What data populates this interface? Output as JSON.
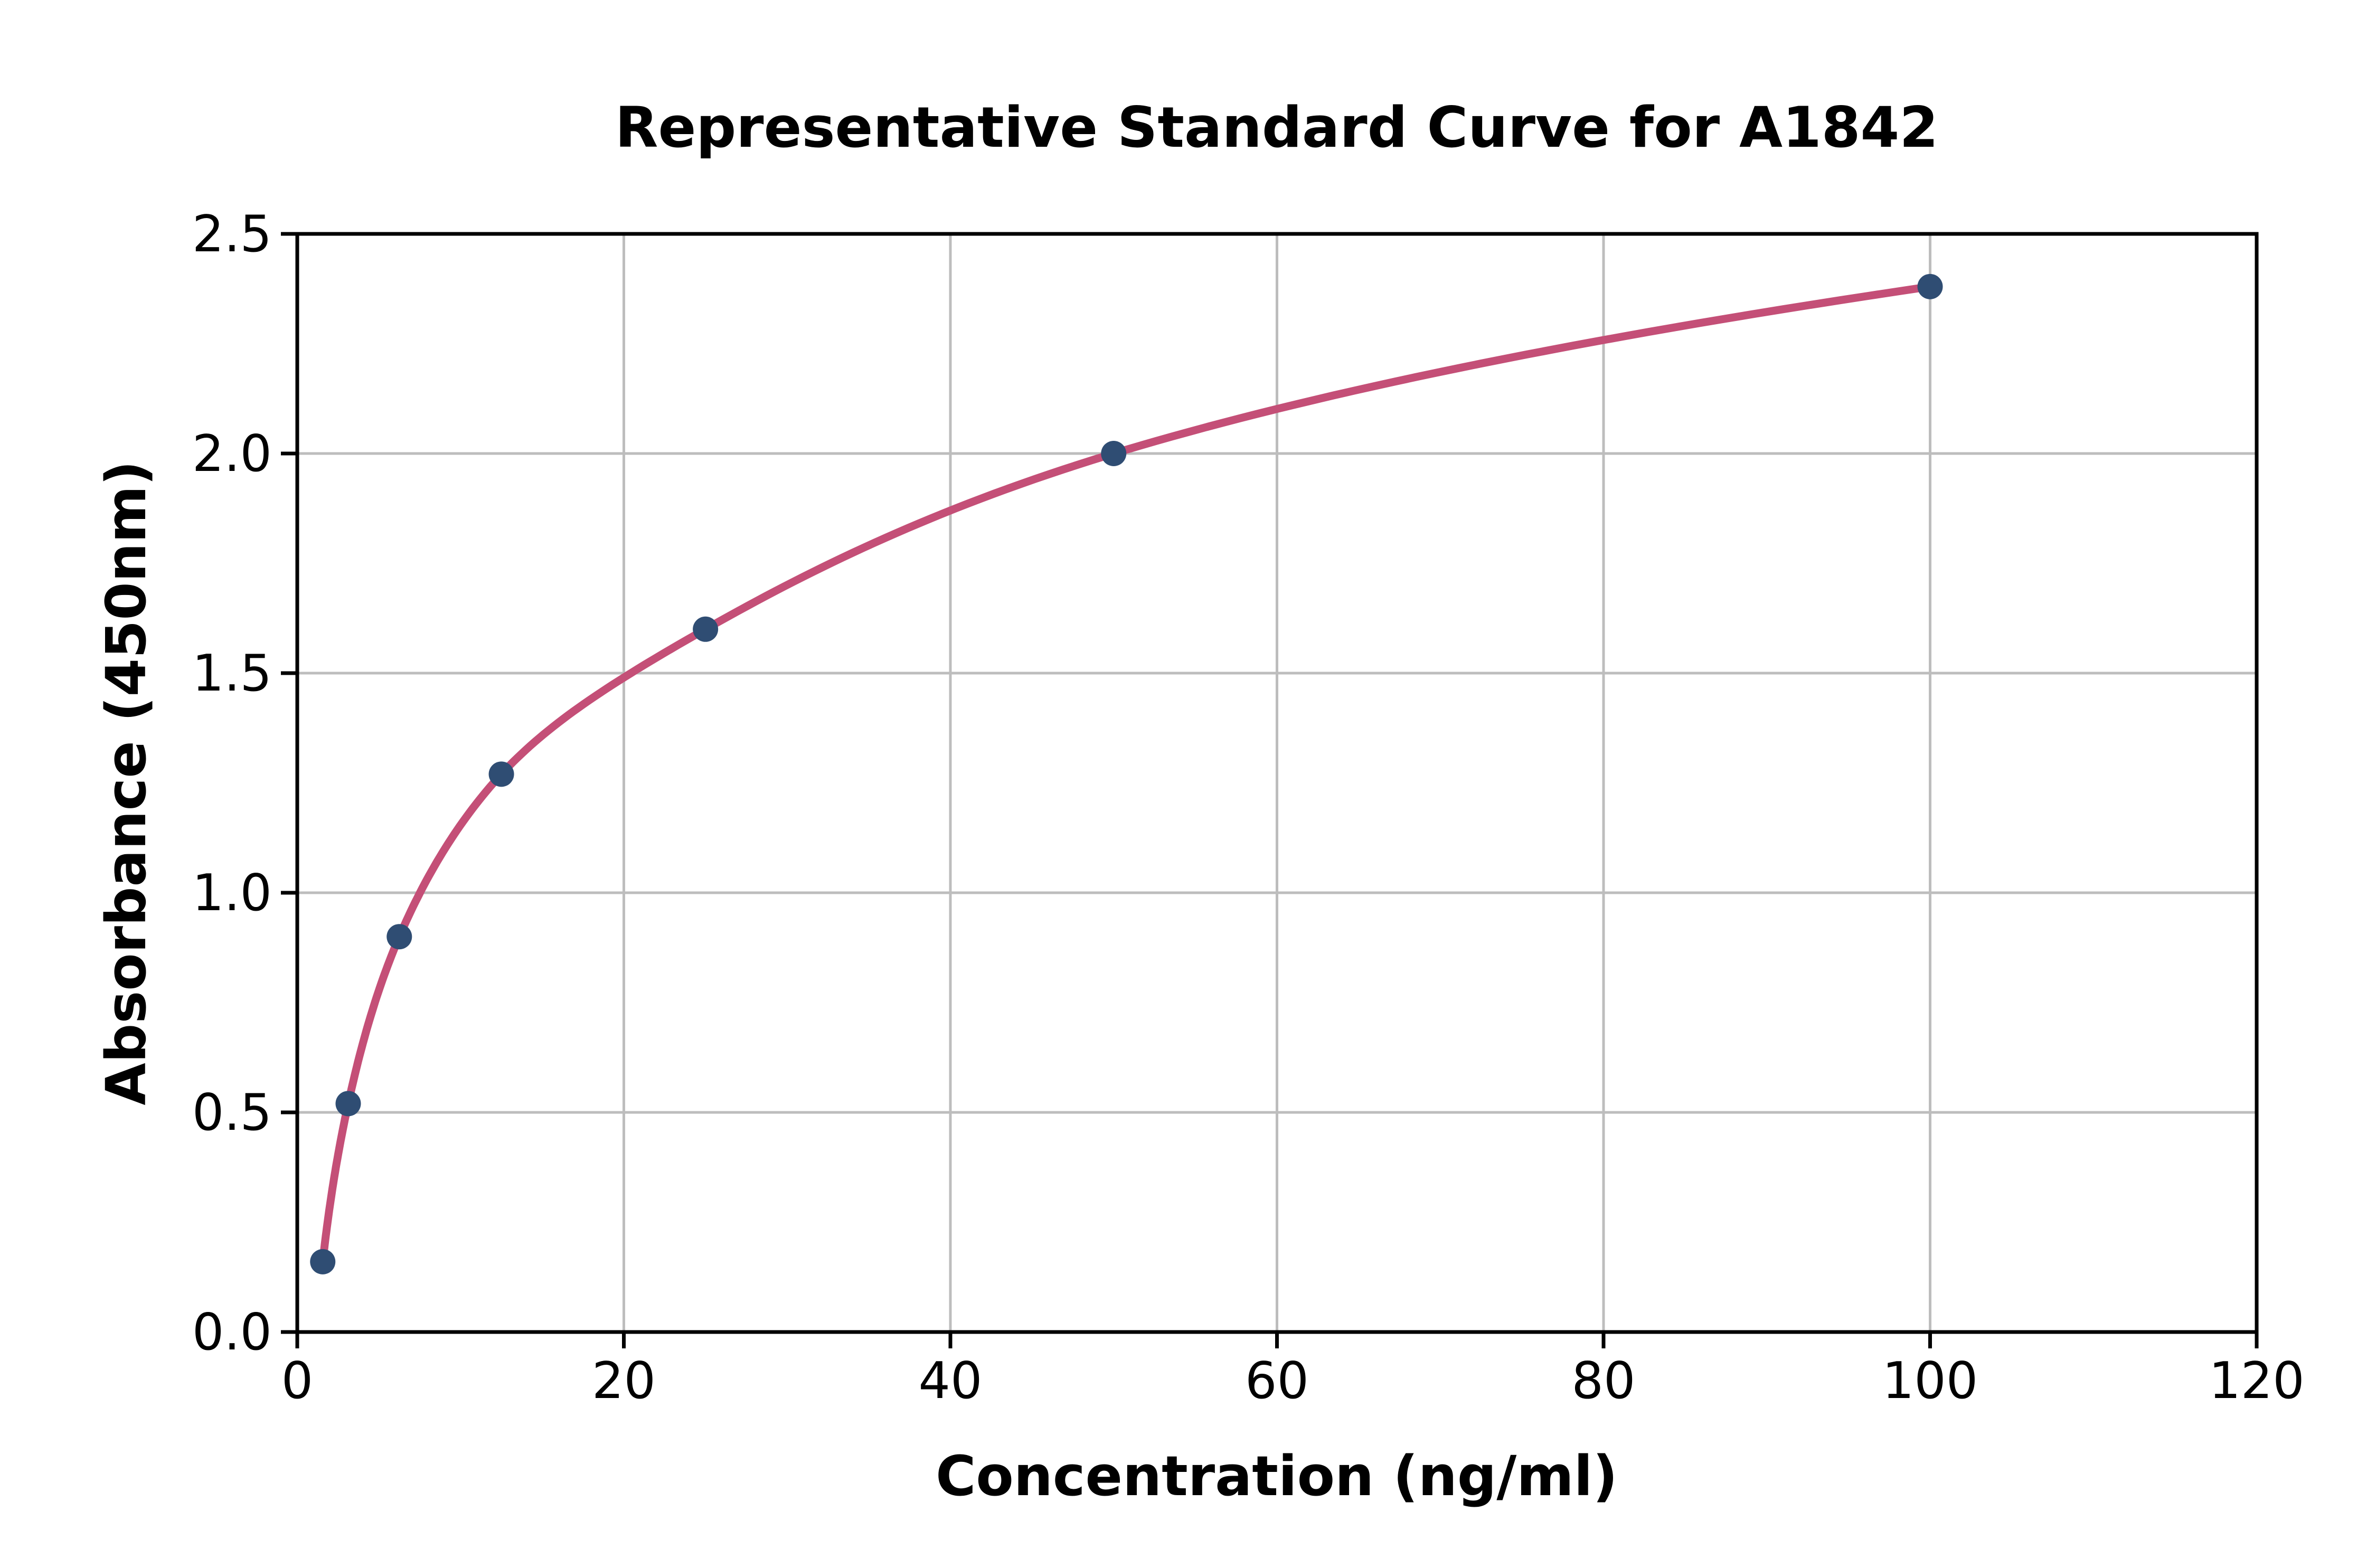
{
  "chart_data": {
    "type": "scatter",
    "title": "Representative Standard Curve for A1842",
    "xlabel": "Concentration (ng/ml)",
    "ylabel": "Absorbance (450nm)",
    "xlim": [
      0,
      120
    ],
    "ylim": [
      0.0,
      2.5
    ],
    "xticks": [
      0,
      20,
      40,
      60,
      80,
      100,
      120
    ],
    "yticks": [
      0.0,
      0.5,
      1.0,
      1.5,
      2.0,
      2.5
    ],
    "xtick_labels": [
      "0",
      "20",
      "40",
      "60",
      "80",
      "100",
      "120"
    ],
    "ytick_labels": [
      "0.0",
      "0.5",
      "1.0",
      "1.5",
      "2.0",
      "2.5"
    ],
    "grid": true,
    "legend": "none",
    "series": [
      {
        "name": "standards",
        "x": [
          1.56,
          3.12,
          6.25,
          12.5,
          25,
          50,
          100
        ],
        "y": [
          0.16,
          0.52,
          0.9,
          1.27,
          1.6,
          2.0,
          2.38
        ]
      }
    ],
    "fit_curve": {
      "style": "smooth curve through standard points",
      "x_start": 1.56,
      "x_end": 100
    },
    "colors": {
      "curve": "#C44F77",
      "marker": "#2F4D73",
      "grid": "#BDBDBD",
      "axis": "#000000",
      "background": "#FFFFFF"
    }
  }
}
